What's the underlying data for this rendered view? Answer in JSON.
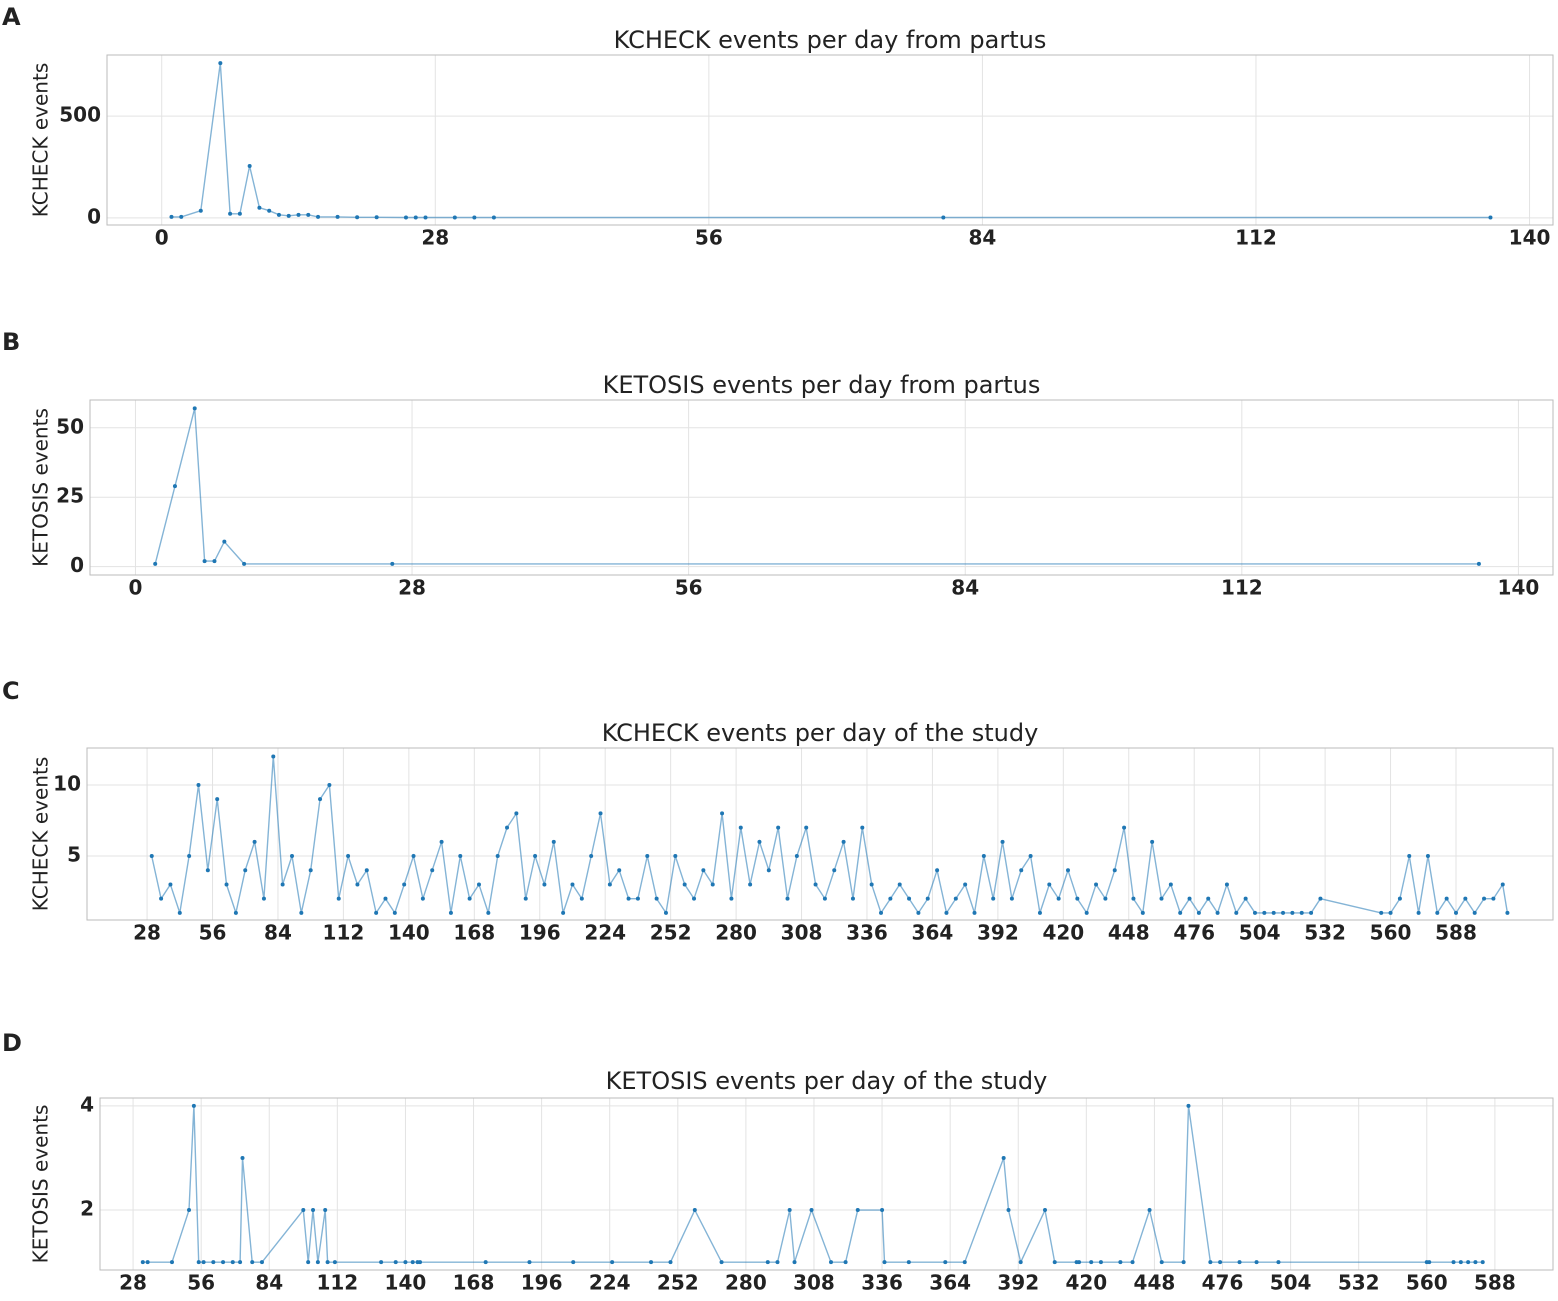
{
  "chart_data": [
    {
      "type": "line",
      "panel": "A",
      "title": "KCHECK events per day from partus",
      "y_label": "KCHECK events",
      "color": "#1f77b4",
      "grid": true,
      "x": [
        1,
        2,
        4,
        6,
        7,
        8,
        9,
        10,
        11,
        12,
        13,
        14,
        15,
        16,
        18,
        20,
        22,
        25,
        26,
        27,
        30,
        32,
        34,
        80,
        136
      ],
      "values": [
        5,
        5,
        35,
        760,
        20,
        20,
        255,
        50,
        35,
        15,
        10,
        15,
        15,
        5,
        5,
        3,
        3,
        2,
        2,
        2,
        2,
        2,
        2,
        2,
        2
      ],
      "xlim": [
        -5.6,
        142.4
      ],
      "xticks": [
        0,
        28,
        56,
        84,
        112,
        140
      ],
      "ylim": [
        -35,
        800
      ],
      "yticks": [
        0,
        500
      ]
    },
    {
      "type": "line",
      "panel": "B",
      "title": "KETOSIS events per day from partus",
      "y_label": "KETOSIS events",
      "color": "#1f77b4",
      "grid": true,
      "x": [
        2,
        4,
        6,
        7,
        8,
        9,
        11,
        26,
        136
      ],
      "values": [
        1,
        29,
        57,
        2,
        2,
        9,
        1,
        1,
        1
      ],
      "xlim": [
        -4.6,
        143.5
      ],
      "xticks": [
        0,
        28,
        56,
        84,
        112,
        140
      ],
      "ylim": [
        -3,
        60
      ],
      "yticks": [
        0,
        25,
        50
      ]
    },
    {
      "type": "line",
      "panel": "C",
      "title": "KCHECK events per day of the study",
      "y_label": "KCHECK events",
      "color": "#1f77b4",
      "grid": true,
      "x": [
        30,
        34,
        38,
        42,
        46,
        50,
        54,
        58,
        62,
        66,
        70,
        74,
        78,
        82,
        86,
        90,
        94,
        98,
        102,
        106,
        110,
        114,
        118,
        122,
        126,
        130,
        134,
        138,
        142,
        146,
        150,
        154,
        158,
        162,
        166,
        170,
        174,
        178,
        182,
        186,
        190,
        194,
        198,
        202,
        206,
        210,
        214,
        218,
        222,
        226,
        230,
        234,
        238,
        242,
        246,
        250,
        254,
        258,
        262,
        266,
        270,
        274,
        278,
        282,
        286,
        290,
        294,
        298,
        302,
        306,
        310,
        314,
        318,
        322,
        326,
        330,
        334,
        338,
        342,
        346,
        350,
        354,
        358,
        362,
        366,
        370,
        374,
        378,
        382,
        386,
        390,
        394,
        398,
        402,
        406,
        410,
        414,
        418,
        422,
        426,
        430,
        434,
        438,
        442,
        446,
        450,
        454,
        458,
        462,
        466,
        470,
        474,
        478,
        482,
        486,
        490,
        494,
        498,
        502,
        506,
        510,
        514,
        518,
        522,
        526,
        530,
        556,
        560,
        564,
        568,
        572,
        576,
        580,
        584,
        588,
        592,
        596,
        600,
        604,
        608,
        610
      ],
      "values": [
        5,
        2,
        3,
        1,
        5,
        10,
        4,
        9,
        3,
        1,
        4,
        6,
        2,
        12,
        3,
        5,
        1,
        4,
        9,
        10,
        2,
        5,
        3,
        4,
        1,
        2,
        1,
        3,
        5,
        2,
        4,
        6,
        1,
        5,
        2,
        3,
        1,
        5,
        7,
        8,
        2,
        5,
        3,
        6,
        1,
        3,
        2,
        5,
        8,
        3,
        4,
        2,
        2,
        5,
        2,
        1,
        5,
        3,
        2,
        4,
        3,
        8,
        2,
        7,
        3,
        6,
        4,
        7,
        2,
        5,
        7,
        3,
        2,
        4,
        6,
        2,
        7,
        3,
        1,
        2,
        3,
        2,
        1,
        2,
        4,
        1,
        2,
        3,
        1,
        5,
        2,
        6,
        2,
        4,
        5,
        1,
        3,
        2,
        4,
        2,
        1,
        3,
        2,
        4,
        7,
        2,
        1,
        6,
        2,
        3,
        1,
        2,
        1,
        2,
        1,
        3,
        1,
        2,
        1,
        1,
        1,
        1,
        1,
        1,
        1,
        2,
        1,
        1,
        2,
        5,
        1,
        5,
        1,
        2,
        1,
        2,
        1,
        2,
        2,
        3,
        1
      ],
      "xlim": [
        2.3,
        629.5
      ],
      "xticks": [
        28,
        56,
        84,
        112,
        140,
        168,
        196,
        224,
        252,
        280,
        308,
        336,
        364,
        392,
        420,
        448,
        476,
        504,
        532,
        560,
        588
      ],
      "ylim": [
        0.5,
        12.6
      ],
      "yticks": [
        5,
        10
      ]
    },
    {
      "type": "line",
      "panel": "D",
      "title": "KETOSIS events per day of the study",
      "y_label": "KETOSIS events",
      "color": "#1f77b4",
      "grid": true,
      "x": [
        32,
        34,
        44,
        51,
        53,
        55,
        57,
        61,
        65,
        69,
        72,
        73,
        77,
        81,
        98,
        100,
        102,
        104,
        107,
        108,
        111,
        130,
        136,
        140,
        143,
        145,
        146,
        173,
        191,
        209,
        225,
        241,
        249,
        259,
        270,
        289,
        293,
        298,
        300,
        307,
        315,
        321,
        326,
        336,
        337,
        347,
        362,
        370,
        386,
        388,
        393,
        403,
        407,
        416,
        417,
        422,
        426,
        434,
        439,
        446,
        451,
        460,
        462,
        471,
        475,
        483,
        490,
        499,
        560,
        561,
        571,
        574,
        577,
        580,
        583
      ],
      "values": [
        1,
        1,
        1,
        2,
        4,
        1,
        1,
        1,
        1,
        1,
        1,
        3,
        1,
        1,
        2,
        1,
        2,
        1,
        2,
        1,
        1,
        1,
        1,
        1,
        1,
        1,
        1,
        1,
        1,
        1,
        1,
        1,
        1,
        2,
        1,
        1,
        1,
        2,
        1,
        2,
        1,
        1,
        2,
        2,
        1,
        1,
        1,
        1,
        3,
        2,
        1,
        2,
        1,
        1,
        1,
        1,
        1,
        1,
        1,
        2,
        1,
        1,
        4,
        1,
        1,
        1,
        1,
        1,
        1,
        1,
        1,
        1,
        1,
        1,
        1
      ],
      "xlim": [
        14.4,
        611.9
      ],
      "xticks": [
        28,
        56,
        84,
        112,
        140,
        168,
        196,
        224,
        252,
        280,
        308,
        336,
        364,
        392,
        420,
        448,
        476,
        504,
        532,
        560,
        588
      ],
      "ylim": [
        0.85,
        4.15
      ],
      "yticks": [
        2,
        4
      ]
    }
  ]
}
